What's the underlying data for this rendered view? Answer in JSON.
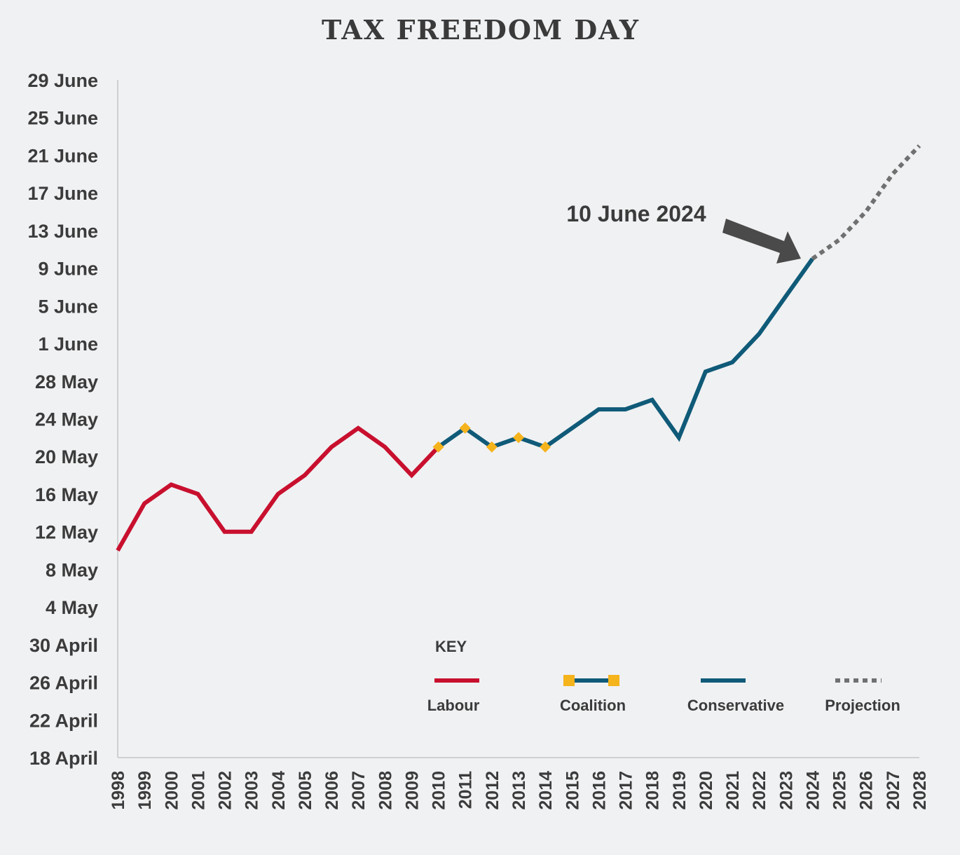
{
  "chart_data": {
    "type": "line",
    "title": "Tax Freedom Day",
    "x": [
      1998,
      1999,
      2000,
      2001,
      2002,
      2003,
      2004,
      2005,
      2006,
      2007,
      2008,
      2009,
      2010,
      2011,
      2012,
      2013,
      2014,
      2015,
      2016,
      2017,
      2018,
      2019,
      2020,
      2021,
      2022,
      2023,
      2024,
      2025,
      2026,
      2027,
      2028
    ],
    "y_tick_labels": [
      "29 June",
      "25 June",
      "21 June",
      "17 June",
      "13 June",
      "9 June",
      "5 June",
      "1 June",
      "28 May",
      "24 May",
      "20 May",
      "16 May",
      "12 May",
      "8 May",
      "4 May",
      "30 April",
      "26 April",
      "22 April",
      "18 April"
    ],
    "ylim": [
      "18 April",
      "29 June"
    ],
    "series": [
      {
        "name": "Labour",
        "color": "#c8102e",
        "style": "solid",
        "x": [
          1998,
          1999,
          2000,
          2001,
          2002,
          2003,
          2004,
          2005,
          2006,
          2007,
          2008,
          2009,
          2010
        ],
        "y": [
          "10 May",
          "15 May",
          "17 May",
          "16 May",
          "12 May",
          "12 May",
          "16 May",
          "18 May",
          "21 May",
          "23 May",
          "21 May",
          "18 May",
          "21 May"
        ]
      },
      {
        "name": "Coalition",
        "color": "#0f5a78",
        "marker_color": "#f5b31c",
        "style": "solid-with-diamonds",
        "x": [
          2010,
          2011,
          2012,
          2013,
          2014
        ],
        "y": [
          "21 May",
          "23 May",
          "21 May",
          "22 May",
          "21 May"
        ]
      },
      {
        "name": "Conservative",
        "color": "#0f5a78",
        "style": "solid",
        "x": [
          2014,
          2015,
          2016,
          2017,
          2018,
          2019,
          2020,
          2021,
          2022,
          2023,
          2024
        ],
        "y": [
          "21 May",
          "23 May",
          "25 May",
          "25 May",
          "26 May",
          "22 May",
          "29 May",
          "30 May",
          "2 June",
          "6 June",
          "10 June"
        ]
      },
      {
        "name": "Projection",
        "color": "#707070",
        "style": "dotted",
        "x": [
          2024,
          2025,
          2026,
          2027,
          2028
        ],
        "y": [
          "10 June",
          "12 June",
          "15 June",
          "19 June",
          "22 June"
        ]
      }
    ],
    "annotation": {
      "text": "10 June 2024",
      "target_year": 2024
    },
    "legend": {
      "title": "KEY",
      "placement": "bottom-right",
      "items": [
        "Labour",
        "Coalition",
        "Conservative",
        "Projection"
      ]
    },
    "grid": false
  }
}
